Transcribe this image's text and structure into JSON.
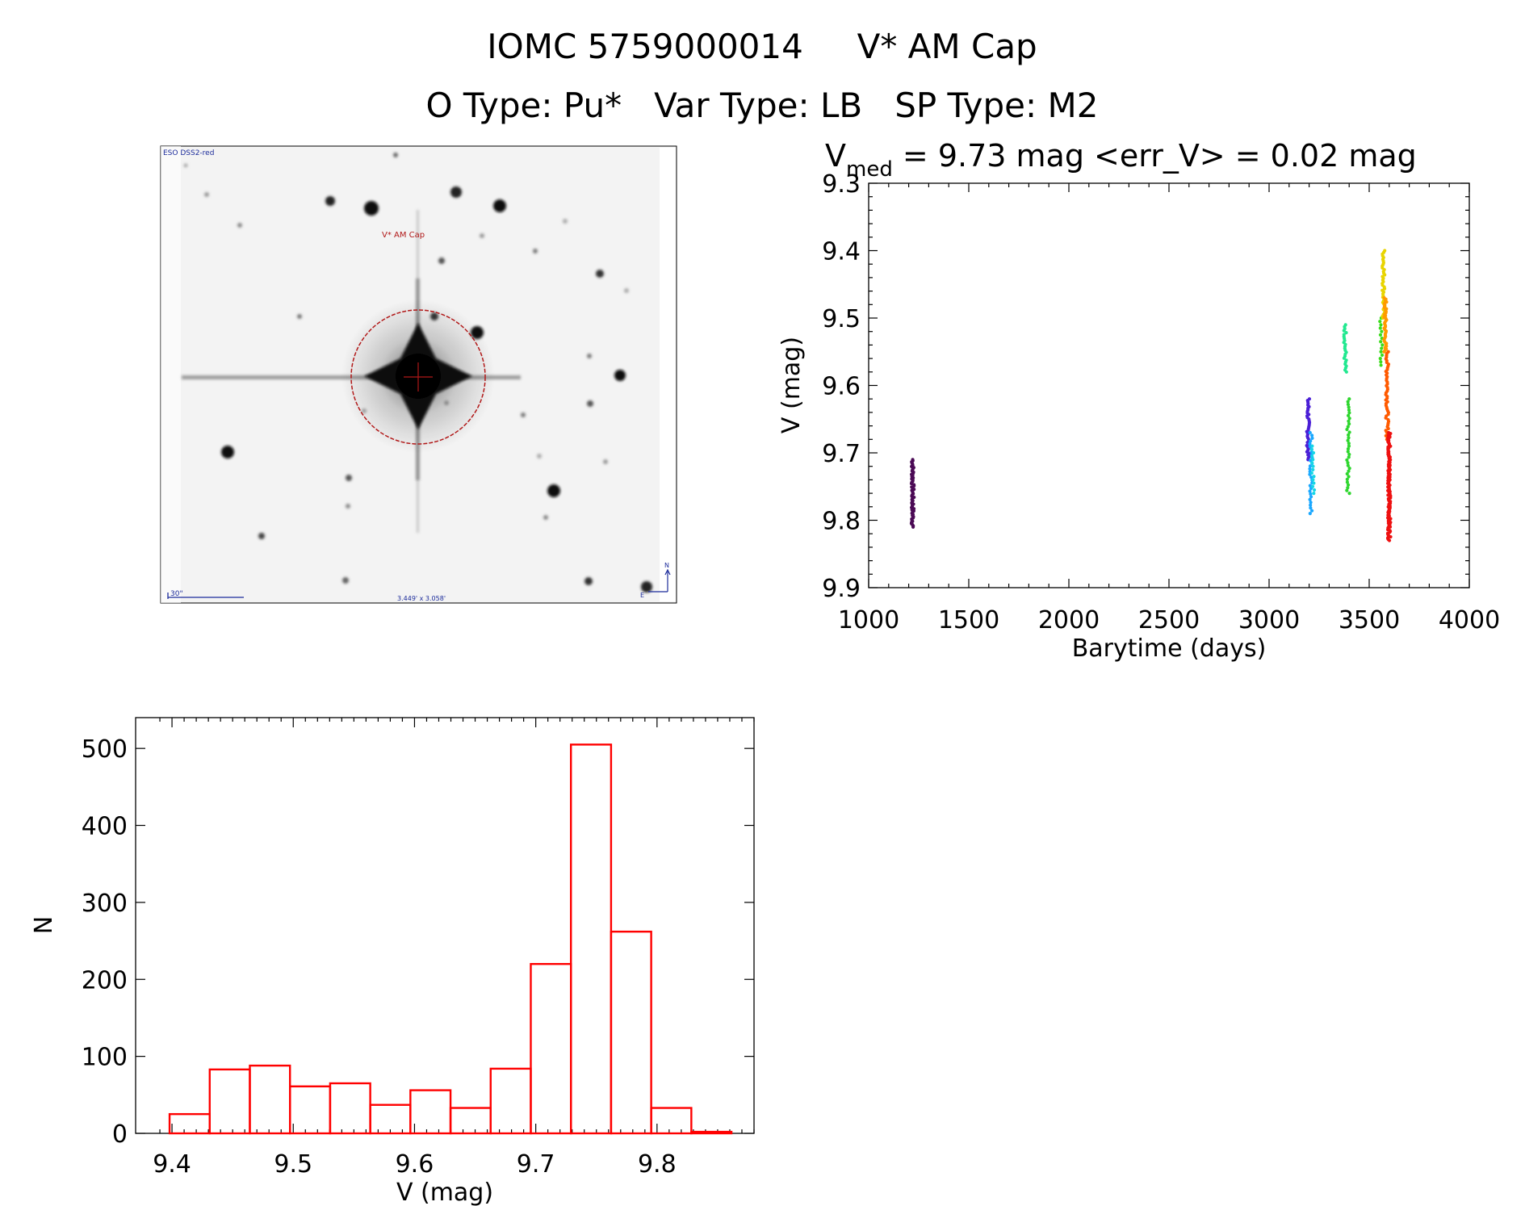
{
  "header": {
    "line1": "IOMC 5759000014     V* AM Cap",
    "line2": "O Type: Pu*   Var Type: LB   SP Type: M2"
  },
  "image_panel": {
    "survey_label": "ESO DSS2-red",
    "target_label": "V* AM Cap",
    "scale_label": "30\"",
    "fov_label": "3.449' x 3.058'",
    "north_label": "N",
    "east_label": "E"
  },
  "chart_data": [
    {
      "type": "scatter",
      "title_parts": {
        "symbol": "V",
        "subscript": "med",
        "rest": " = 9.73 mag <err_V> = 0.02 mag"
      },
      "xlabel": "Barytime (days)",
      "ylabel": "V (mag)",
      "xlim": [
        1000,
        4000
      ],
      "ylim": [
        9.9,
        9.3
      ],
      "y_inverted": true,
      "xticks": [
        1000,
        1500,
        2000,
        2500,
        3000,
        3500,
        4000
      ],
      "yticks": [
        9.3,
        9.4,
        9.5,
        9.6,
        9.7,
        9.8,
        9.9
      ],
      "ytick_labels": [
        "9.3",
        "9.4",
        "9.5",
        "9.6",
        "9.7",
        "9.8",
        "9.9"
      ],
      "colormap": "rainbow",
      "groups": [
        {
          "x": 1220,
          "ymin": 9.71,
          "ymax": 9.81,
          "color": "#4b0a55",
          "n": 60
        },
        {
          "x": 3195,
          "ymin": 9.62,
          "ymax": 9.71,
          "color": "#4a1fd6",
          "n": 40
        },
        {
          "x": 3210,
          "ymin": 9.67,
          "ymax": 9.79,
          "color": "#1aa8ff",
          "n": 30
        },
        {
          "x": 3220,
          "ymin": 9.69,
          "ymax": 9.76,
          "color": "#16d6e6",
          "n": 15
        },
        {
          "x": 3380,
          "ymin": 9.51,
          "ymax": 9.58,
          "color": "#22e890",
          "n": 25
        },
        {
          "x": 3395,
          "ymin": 9.62,
          "ymax": 9.76,
          "color": "#2ed62e",
          "n": 35
        },
        {
          "x": 3560,
          "ymin": 9.5,
          "ymax": 9.57,
          "color": "#3bdc1c",
          "n": 15
        },
        {
          "x": 3572,
          "ymin": 9.4,
          "ymax": 9.5,
          "color": "#e8d400",
          "n": 40
        },
        {
          "x": 3580,
          "ymin": 9.47,
          "ymax": 9.55,
          "color": "#ff9a00",
          "n": 40
        },
        {
          "x": 3590,
          "ymin": 9.55,
          "ymax": 9.68,
          "color": "#ff5a00",
          "n": 50
        },
        {
          "x": 3600,
          "ymin": 9.67,
          "ymax": 9.83,
          "color": "#ee1010",
          "n": 120
        }
      ]
    },
    {
      "type": "bar",
      "subtype": "histogram",
      "xlabel": "V (mag)",
      "ylabel": "N",
      "xlim": [
        9.37,
        9.88
      ],
      "ylim": [
        0,
        540
      ],
      "bin_width": 0.0331,
      "bin_start": 9.398,
      "values": [
        25,
        83,
        88,
        61,
        65,
        37,
        56,
        33,
        84,
        220,
        505,
        262,
        33,
        2
      ],
      "color": "#ff0000",
      "xticks": [
        9.4,
        9.5,
        9.6,
        9.7,
        9.8
      ],
      "yticks": [
        0,
        100,
        200,
        300,
        400,
        500
      ]
    }
  ]
}
